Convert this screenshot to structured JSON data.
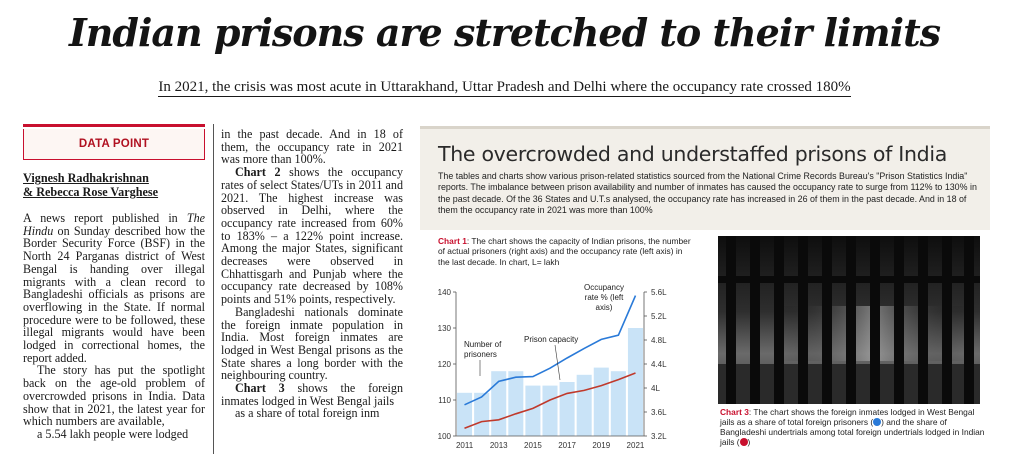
{
  "headline": "Indian prisons are stretched to their limits",
  "subhead": "In 2021, the crisis was most acute in Uttarakhand, Uttar Pradesh and Delhi where the occupancy rate crossed 180%",
  "data_point_label": "DATA POINT",
  "byline": [
    "Vignesh Radhakrishnan",
    "& Rebecca Rose Varghese"
  ],
  "col1": {
    "p1_a": "A news report published in ",
    "p1_paper": "The Hindu",
    "p1_b": " on Sunday described how the Border Security Force (BSF) in the North 24 Parganas district of West Bengal is handing over illegal migrants with a clean record to Bangladeshi officials as prisons are overflowing in the State. If normal procedure were to be followed, these illegal migrants would have been lodged in correctional homes, the report added.",
    "p2": "The story has put the spotlight back on the age-old problem of overcrowded prisons in India. Data show that in 2021, the latest year for which numbers are available,",
    "p3_partial": "a 5.54 lakh people were lodged"
  },
  "col2": {
    "p1": "in the past decade. And in 18 of them, the occupancy rate in 2021 was more than 100%.",
    "p2_lead": "Chart 2",
    "p2": " shows the occupancy rates of select States/UTs in 2011 and 2021. The highest increase was observed in Delhi, where the occupancy rate increased from 60% to 183% – a 122% point increase. Among the major States, significant decreases were observed in Chhattisgarh and Punjab where the occupancy rate decreased by 108% points and 51% points, respectively.",
    "p3": "Bangladeshi nationals dominate the foreign inmate population in India. Most foreign inmates are lodged in West Bengal prisons as the State shares a long border with the neighbouring country.",
    "p4_lead": "Chart 3",
    "p4": " shows the foreign inmates lodged in West Bengal jails",
    "p5_partial": "as a share of total foreign inm"
  },
  "panel": {
    "title": "The overcrowded and understaffed prisons of India",
    "description": "The tables and charts show various prison-related statistics sourced from the National Crime Records Bureau's \"Prison Statistics India\" reports. The imbalance between prison availability and number of inmates has caused the occupancy rate to surge from 112% to 130% in the past decade. Of the 36 States and U.T.s analysed, the occupancy rate has increased in 26 of them in the past decade. And in 18 of them the occupancy rate in 2021 was more than 100%"
  },
  "chart1": {
    "caption_label": "Chart 1",
    "caption_text": ": The chart shows the capacity of Indian prisons, the number of actual prisoners (right axis) and the occupancy rate (left axis) in the last decade. In chart, L= lakh"
  },
  "chart3": {
    "caption_label": "Chart 3",
    "caption_a": ": The chart shows the foreign inmates lodged in West Bengal jails as a share of total foreign prisoners (",
    "caption_b": ") and the share of Bangladeshi undertrials among total foreign undertrials lodged in Indian jails (",
    "caption_c": ")"
  },
  "chart_data": {
    "type": "bar",
    "categories": [
      "2011",
      "2012",
      "2013",
      "2014",
      "2015",
      "2016",
      "2017",
      "2018",
      "2019",
      "2020",
      "2021"
    ],
    "x_tick_labels": [
      "2011",
      "2013",
      "2015",
      "2017",
      "2019",
      "2021"
    ],
    "left_axis": {
      "ticks": [
        100,
        110,
        120,
        130,
        140
      ],
      "ylim": [
        100,
        140
      ]
    },
    "right_axis": {
      "ticks": [
        "3.2L",
        "3.6L",
        "4L",
        "4.4L",
        "4.8L",
        "5.2L",
        "5.6L"
      ],
      "ylim": [
        3.2,
        5.6
      ]
    },
    "series": [
      {
        "name": "Occupancy rate % (left axis)",
        "kind": "bar",
        "axis": "left",
        "color": "#c9e3f7",
        "values": [
          112,
          112,
          118,
          118,
          114,
          114,
          115,
          117,
          119,
          118,
          130
        ]
      },
      {
        "name": "Prison capacity",
        "kind": "line",
        "axis": "right",
        "color": "#c0392b",
        "values": [
          3.33,
          3.44,
          3.47,
          3.57,
          3.66,
          3.8,
          3.91,
          3.96,
          4.04,
          4.14,
          4.25
        ]
      },
      {
        "name": "Number of prisoners",
        "kind": "line",
        "axis": "right",
        "color": "#2a7ad8",
        "values": [
          3.72,
          3.85,
          4.11,
          4.18,
          4.19,
          4.33,
          4.5,
          4.66,
          4.81,
          4.88,
          5.54
        ]
      }
    ],
    "annotations": [
      "Number of prisoners",
      "Prison capacity",
      "Occupancy rate % (left axis)"
    ]
  },
  "colors": {
    "accent_red": "#c8102e",
    "bar": "#c9e3f7",
    "blue_line": "#2a7ad8",
    "red_line": "#c0392b"
  }
}
